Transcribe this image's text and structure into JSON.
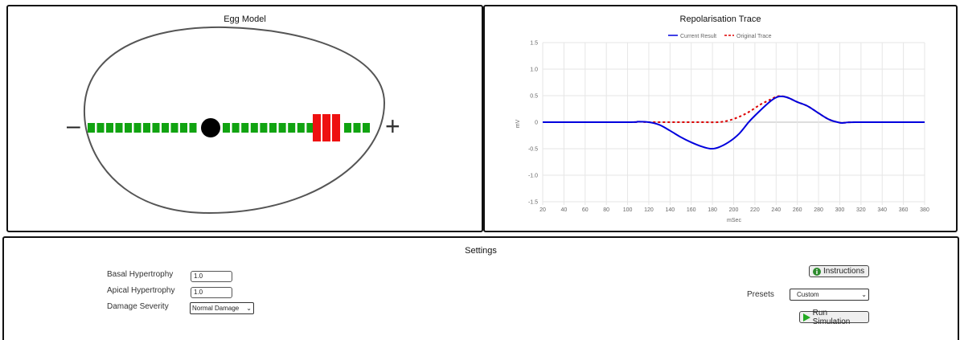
{
  "egg_panel": {
    "title": "Egg Model",
    "minus_symbol": "–",
    "plus_symbol": "+",
    "segment_colors": {
      "normal": "#11a311",
      "damaged": "#ee1111",
      "node": "#000000"
    }
  },
  "trace_panel": {
    "title": "Repolarisation Trace"
  },
  "chart_data": {
    "type": "line",
    "title": "Repolarisation Trace",
    "xlabel": "mSec",
    "ylabel": "mV",
    "xlim": [
      20,
      380
    ],
    "ylim": [
      -1.5,
      1.5
    ],
    "x_ticks": [
      "20",
      "40",
      "60",
      "80",
      "100",
      "120",
      "140",
      "160",
      "180",
      "200",
      "220",
      "240",
      "260",
      "280",
      "300",
      "320",
      "340",
      "360",
      "380"
    ],
    "y_ticks": [
      "1.5",
      "1.0",
      "0.5",
      "0",
      "-0.5",
      "-1.0",
      "-1.5"
    ],
    "grid": true,
    "legend_position": "top-center",
    "series": [
      {
        "name": "Current Result",
        "color": "#0000dd",
        "style": "solid",
        "points": [
          [
            20,
            0
          ],
          [
            100,
            0
          ],
          [
            110,
            0.01
          ],
          [
            120,
            0
          ],
          [
            130,
            -0.05
          ],
          [
            140,
            -0.16
          ],
          [
            150,
            -0.28
          ],
          [
            160,
            -0.38
          ],
          [
            170,
            -0.46
          ],
          [
            178,
            -0.5
          ],
          [
            185,
            -0.48
          ],
          [
            195,
            -0.38
          ],
          [
            205,
            -0.22
          ],
          [
            215,
            0.02
          ],
          [
            225,
            0.22
          ],
          [
            235,
            0.4
          ],
          [
            242,
            0.48
          ],
          [
            250,
            0.47
          ],
          [
            260,
            0.38
          ],
          [
            270,
            0.3
          ],
          [
            280,
            0.17
          ],
          [
            290,
            0.05
          ],
          [
            300,
            -0.01
          ],
          [
            305,
            -0.01
          ],
          [
            315,
            0
          ],
          [
            380,
            0
          ]
        ]
      },
      {
        "name": "Original Trace",
        "color": "#dd0000",
        "style": "dashed",
        "points": [
          [
            20,
            0
          ],
          [
            100,
            0
          ],
          [
            110,
            0.01
          ],
          [
            120,
            0
          ],
          [
            150,
            0
          ],
          [
            170,
            0
          ],
          [
            185,
            0
          ],
          [
            195,
            0.03
          ],
          [
            205,
            0.1
          ],
          [
            215,
            0.2
          ],
          [
            225,
            0.33
          ],
          [
            235,
            0.43
          ],
          [
            242,
            0.49
          ],
          [
            250,
            0.47
          ],
          [
            260,
            0.38
          ],
          [
            270,
            0.3
          ],
          [
            280,
            0.17
          ],
          [
            290,
            0.05
          ],
          [
            300,
            -0.01
          ],
          [
            305,
            -0.01
          ],
          [
            315,
            0
          ],
          [
            380,
            0
          ]
        ]
      }
    ]
  },
  "settings": {
    "title": "Settings",
    "basal_label": "Basal Hypertrophy",
    "basal_value": "1.0",
    "apical_label": "Apical Hypertrophy",
    "apical_value": "1.0",
    "damage_label": "Damage Severity",
    "damage_value": "Normal Damage",
    "instructions_label": "Instructions",
    "presets_label": "Presets",
    "presets_value": "Custom",
    "run_label": "Run Simulation"
  }
}
